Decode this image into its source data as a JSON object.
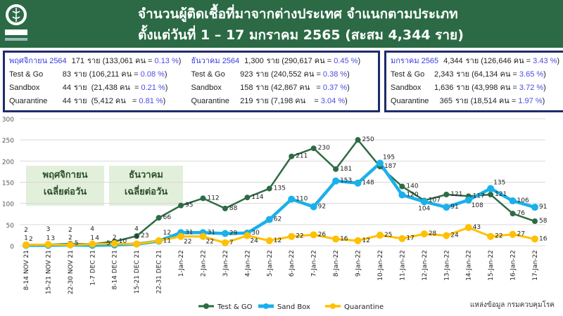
{
  "header": {
    "title_line1": "จำนวนผู้ติดเชื้อที่มาจากต่างประเทศ  จำแนกตามประเภท",
    "title_line2": "ตั้งแต่วันที่  1 – 17  มกราคม  2565 (สะสม 4,344 ราย)",
    "logo_text": "กรมควบคุมโรค"
  },
  "summary": [
    {
      "month": "พฤศจิกายน 2564",
      "rows": [
        {
          "label": "",
          "count": "171",
          "detail": "ราย (133,061 คน = ",
          "pct": "0.13 %",
          ")": ")"
        },
        {
          "label": "Test & Go",
          "count": "83",
          "detail": "ราย (106,211 คน = ",
          "pct": "0.08 %"
        },
        {
          "label": "Sandbox",
          "count": "44",
          "detail": "ราย  (21,438 คน  = ",
          "pct": "0.21 %"
        },
        {
          "label": "Quarantine",
          "count": "44",
          "detail": "ราย  (5,412 คน   = ",
          "pct": "0.81 %"
        }
      ]
    },
    {
      "month": "ธันวาคม 2564",
      "rows": [
        {
          "label": "",
          "count": "1,300",
          "detail": "ราย (290,617 คน = ",
          "pct": "0.45 %"
        },
        {
          "label": "Test & Go",
          "count": "923",
          "detail": "ราย (240,552 คน = ",
          "pct": "0.38 %"
        },
        {
          "label": "Sandbox",
          "count": "158",
          "detail": "ราย (42,867 คน   = ",
          "pct": "0.37 %"
        },
        {
          "label": "Quarantine",
          "count": "219",
          "detail": "ราย (7,198 คน    = ",
          "pct": "3.04 %"
        }
      ]
    },
    {
      "month": "มกราคม 2565",
      "rows": [
        {
          "label": "",
          "count": "4,344",
          "detail": "ราย (126,646 คน = ",
          "pct": "3.43 %"
        },
        {
          "label": "Test & Go",
          "count": "2,343",
          "detail": "ราย (64,134 คน = ",
          "pct": "3.65 %"
        },
        {
          "label": "Sandbox",
          "count": "1,636",
          "detail": "ราย (43,998 คน = ",
          "pct": "3.72 %"
        },
        {
          "label": "Quarantine",
          "count": "365",
          "detail": "ราย (18,514 คน = ",
          "pct": "1.97 %"
        }
      ]
    }
  ],
  "close_paren": ")",
  "info_boxes": [
    {
      "line1": "พฤศจิกายน",
      "line2": "เฉลี่ยต่อวัน"
    },
    {
      "line1": "ธันวาคม",
      "line2": "เฉลี่ยต่อวัน"
    }
  ],
  "source": "แหล่งข้อมูล กรมควบคุมโรค",
  "chart_data": {
    "type": "line",
    "categories": [
      "8-14 NOV 21",
      "15-21 NOV 21",
      "22-30 NOV 21",
      "1-7 DEC 21",
      "8-14 DEC 21",
      "15-21 DEC 21",
      "22-31 DEC 21",
      "1-Jan-22",
      "2-Jan-22",
      "3-Jan-22",
      "4-Jan-22",
      "5-Jan-22",
      "6-Jan-22",
      "7-Jan-22",
      "8-Jan-22",
      "9-Jan-22",
      "10-Jan-22",
      "11-Jan-22",
      "12-Jan-22",
      "13-Jan-22",
      "14-Jan-22",
      "15-Jan-22",
      "16-Jan-22",
      "17-Jan-22"
    ],
    "ylim": [
      0,
      300
    ],
    "yticks": [
      0,
      50,
      100,
      150,
      200,
      250,
      300
    ],
    "grid": true,
    "legend": "bottom",
    "series": [
      {
        "name": "Test & GO",
        "color": "#2e6b45",
        "values": [
          2,
          3,
          5,
          4,
          10,
          23,
          66,
          95,
          112,
          88,
          114,
          135,
          211,
          230,
          181,
          250,
          187,
          140,
          107,
          121,
          117,
          121,
          76,
          58
        ]
      },
      {
        "name": "Sand Box",
        "color": "#1ab0ea",
        "values": [
          1,
          1,
          2,
          1,
          2,
          4,
          11,
          31,
          31,
          29,
          30,
          62,
          110,
          92,
          153,
          148,
          195,
          120,
          104,
          91,
          108,
          135,
          106,
          91
        ]
      },
      {
        "name": "Quarantine",
        "color": "#ffc000",
        "values": [
          2,
          3,
          2,
          4,
          5,
          4,
          12,
          22,
          22,
          7,
          24,
          12,
          22,
          26,
          16,
          12,
          25,
          17,
          28,
          24,
          43,
          22,
          27,
          16
        ]
      }
    ]
  }
}
